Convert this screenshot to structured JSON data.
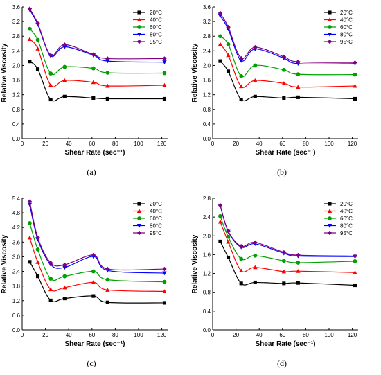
{
  "chart_data": [
    {
      "type": "line",
      "caption": "(a)",
      "xlabel": "Shear Rate (sec⁻¹)",
      "ylabel": "Relative Viscosity",
      "xlim": [
        0,
        125
      ],
      "ylim": [
        0,
        3.6
      ],
      "xticks": [
        "0",
        "20",
        "40",
        "60",
        "80",
        "100",
        "120"
      ],
      "yticks": [
        "0.0",
        "0.4",
        "0.8",
        "1.2",
        "1.6",
        "2.0",
        "2.4",
        "2.8",
        "3.2",
        "3.6"
      ],
      "legend_position": "top-right",
      "x": [
        6.5,
        13.4,
        24.5,
        36.5,
        61.2,
        73.4,
        122.3
      ],
      "series": [
        {
          "name": "20°C",
          "color": "#000000",
          "marker": "square",
          "values": [
            2.11,
            1.9,
            1.07,
            1.15,
            1.11,
            1.09,
            1.09
          ]
        },
        {
          "name": "40°C",
          "color": "#ff0000",
          "marker": "triangle-up",
          "values": [
            2.72,
            2.46,
            1.46,
            1.59,
            1.54,
            1.44,
            1.46
          ]
        },
        {
          "name": "60°C",
          "color": "#00a000",
          "marker": "circle",
          "values": [
            3.0,
            2.7,
            1.78,
            1.96,
            1.92,
            1.8,
            1.79
          ]
        },
        {
          "name": "80°C",
          "color": "#0000ff",
          "marker": "triangle-down",
          "values": [
            3.52,
            3.12,
            2.26,
            2.51,
            2.28,
            2.12,
            2.09
          ]
        },
        {
          "name": "95°C",
          "color": "#800080",
          "marker": "diamond",
          "values": [
            3.55,
            3.15,
            2.28,
            2.57,
            2.3,
            2.19,
            2.19
          ]
        }
      ]
    },
    {
      "type": "line",
      "caption": "(b)",
      "xlabel": "Shear Rate (sec⁻¹)",
      "ylabel": "Relative Viscosity",
      "xlim": [
        0,
        125
      ],
      "ylim": [
        0,
        3.6
      ],
      "xticks": [
        "0",
        "20",
        "40",
        "60",
        "80",
        "100",
        "120"
      ],
      "yticks": [
        "0.0",
        "0.4",
        "0.8",
        "1.2",
        "1.6",
        "2.0",
        "2.4",
        "2.8",
        "3.2",
        "3.6"
      ],
      "legend_position": "top-right",
      "x": [
        6.5,
        13.4,
        24.5,
        36.5,
        61.2,
        73.4,
        122.3
      ],
      "series": [
        {
          "name": "20°C",
          "color": "#000000",
          "marker": "square",
          "values": [
            2.12,
            1.84,
            1.07,
            1.15,
            1.11,
            1.13,
            1.09
          ]
        },
        {
          "name": "40°C",
          "color": "#ff0000",
          "marker": "triangle-up",
          "values": [
            2.58,
            2.28,
            1.43,
            1.59,
            1.51,
            1.41,
            1.44
          ]
        },
        {
          "name": "60°C",
          "color": "#00a000",
          "marker": "circle",
          "values": [
            2.8,
            2.58,
            1.71,
            2.0,
            1.88,
            1.76,
            1.75
          ]
        },
        {
          "name": "80°C",
          "color": "#0000ff",
          "marker": "triangle-down",
          "values": [
            3.36,
            2.99,
            2.13,
            2.45,
            2.2,
            2.05,
            2.05
          ]
        },
        {
          "name": "95°C",
          "color": "#800080",
          "marker": "diamond",
          "values": [
            3.43,
            3.05,
            2.2,
            2.5,
            2.24,
            2.1,
            2.08
          ]
        }
      ]
    },
    {
      "type": "line",
      "caption": "(c)",
      "xlabel": "Shear Rate (sec⁻¹)",
      "ylabel": "Relative Viscosity",
      "xlim": [
        0,
        125
      ],
      "ylim": [
        0,
        5.4
      ],
      "xticks": [
        "0",
        "20",
        "40",
        "60",
        "80",
        "100",
        "120"
      ],
      "yticks": [
        "0.0",
        "0.6",
        "1.2",
        "1.8",
        "2.4",
        "3.0",
        "3.6",
        "4.2",
        "4.8",
        "5.4"
      ],
      "legend_position": "top-right",
      "x": [
        6.5,
        13.4,
        24.5,
        36.5,
        61.2,
        73.4,
        122.3
      ],
      "series": [
        {
          "name": "20°C",
          "color": "#000000",
          "marker": "square",
          "values": [
            2.79,
            2.2,
            1.21,
            1.29,
            1.39,
            1.13,
            1.11
          ]
        },
        {
          "name": "40°C",
          "color": "#ff0000",
          "marker": "triangle-up",
          "values": [
            3.78,
            2.78,
            1.66,
            1.74,
            1.95,
            1.64,
            1.58
          ]
        },
        {
          "name": "60°C",
          "color": "#00a000",
          "marker": "circle",
          "values": [
            4.38,
            3.3,
            2.1,
            2.2,
            2.4,
            2.06,
            1.97
          ]
        },
        {
          "name": "80°C",
          "color": "#0000ff",
          "marker": "triangle-down",
          "values": [
            5.14,
            3.71,
            2.68,
            2.56,
            3.01,
            2.44,
            2.33
          ]
        },
        {
          "name": "95°C",
          "color": "#800080",
          "marker": "diamond",
          "values": [
            5.27,
            3.79,
            2.75,
            2.67,
            3.07,
            2.5,
            2.5
          ]
        }
      ]
    },
    {
      "type": "line",
      "caption": "(d)",
      "xlabel": "Shear Rate (sec⁻¹)",
      "ylabel": "Relative Viscosity",
      "xlim": [
        0,
        125
      ],
      "ylim": [
        0,
        2.8
      ],
      "xticks": [
        "0",
        "20",
        "40",
        "60",
        "80",
        "100",
        "120"
      ],
      "yticks": [
        "0.0",
        "0.4",
        "0.8",
        "1.2",
        "1.6",
        "2.0",
        "2.4",
        "2.8"
      ],
      "legend_position": "top-right",
      "x": [
        6.5,
        13.4,
        24.5,
        36.5,
        61.2,
        73.4,
        122.3
      ],
      "series": [
        {
          "name": "20°C",
          "color": "#000000",
          "marker": "square",
          "values": [
            1.88,
            1.54,
            0.99,
            1.01,
            0.99,
            1.0,
            0.95
          ]
        },
        {
          "name": "40°C",
          "color": "#ff0000",
          "marker": "triangle-up",
          "values": [
            2.3,
            1.87,
            1.26,
            1.33,
            1.24,
            1.25,
            1.22
          ]
        },
        {
          "name": "60°C",
          "color": "#00a000",
          "marker": "circle",
          "values": [
            2.42,
            1.98,
            1.51,
            1.58,
            1.47,
            1.43,
            1.46
          ]
        },
        {
          "name": "80°C",
          "color": "#0000ff",
          "marker": "triangle-down",
          "values": [
            2.64,
            2.09,
            1.76,
            1.83,
            1.63,
            1.57,
            1.56
          ]
        },
        {
          "name": "95°C",
          "color": "#800080",
          "marker": "diamond",
          "values": [
            2.65,
            2.1,
            1.78,
            1.86,
            1.65,
            1.59,
            1.57
          ]
        }
      ]
    }
  ]
}
